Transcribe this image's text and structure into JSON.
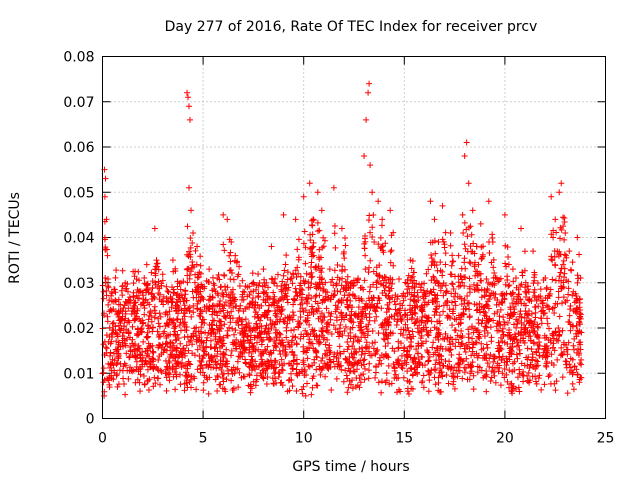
{
  "chart_data": {
    "type": "scatter",
    "title": "Day 277 of 2016, Rate Of TEC Index for receiver prcv",
    "xlabel": "GPS time / hours",
    "ylabel": "ROTI / TECUs",
    "xlim": [
      0,
      25
    ],
    "ylim": [
      0,
      0.08
    ],
    "x_ticks": [
      0,
      5,
      10,
      15,
      20,
      25
    ],
    "x_tick_labels": [
      "0",
      "5",
      "10",
      "15",
      "20",
      "25"
    ],
    "y_ticks": [
      0,
      0.01,
      0.02,
      0.03,
      0.04,
      0.05,
      0.06,
      0.07,
      0.08
    ],
    "y_tick_labels": [
      "0",
      "0.01",
      "0.02",
      "0.03",
      "0.04",
      "0.05",
      "0.06",
      "0.07",
      "0.08"
    ],
    "grid": true,
    "marker": "+",
    "color": "#ff0000",
    "data_range_hours": [
      0,
      23.8
    ],
    "note": "Dense point cloud (thousands of ROTI samples); representative values listed below.",
    "series": [
      {
        "name": "prcv",
        "points": [
          [
            0.05,
            0.028
          ],
          [
            0.08,
            0.005
          ],
          [
            0.1,
            0.055
          ],
          [
            0.12,
            0.049
          ],
          [
            0.15,
            0.053
          ],
          [
            0.2,
            0.044
          ],
          [
            0.25,
            0.036
          ],
          [
            0.3,
            0.029
          ],
          [
            0.4,
            0.024
          ],
          [
            0.5,
            0.013
          ],
          [
            0.7,
            0.012
          ],
          [
            0.9,
            0.016
          ],
          [
            1.1,
            0.025
          ],
          [
            1.3,
            0.019
          ],
          [
            1.5,
            0.014
          ],
          [
            1.8,
            0.028
          ],
          [
            2.0,
            0.021
          ],
          [
            2.2,
            0.034
          ],
          [
            2.4,
            0.012
          ],
          [
            2.6,
            0.042
          ],
          [
            2.8,
            0.018
          ],
          [
            3.0,
            0.026
          ],
          [
            3.2,
            0.015
          ],
          [
            3.5,
            0.035
          ],
          [
            3.7,
            0.022
          ],
          [
            3.9,
            0.03
          ],
          [
            4.1,
            0.024
          ],
          [
            4.2,
            0.072
          ],
          [
            4.25,
            0.071
          ],
          [
            4.3,
            0.069
          ],
          [
            4.35,
            0.066
          ],
          [
            4.3,
            0.051
          ],
          [
            4.4,
            0.046
          ],
          [
            4.5,
            0.041
          ],
          [
            4.7,
            0.038
          ],
          [
            4.9,
            0.027
          ],
          [
            5.1,
            0.019
          ],
          [
            5.3,
            0.033
          ],
          [
            5.5,
            0.025
          ],
          [
            5.7,
            0.031
          ],
          [
            6.0,
            0.045
          ],
          [
            6.1,
            0.006
          ],
          [
            6.2,
            0.044
          ],
          [
            6.4,
            0.039
          ],
          [
            6.6,
            0.036
          ],
          [
            6.8,
            0.022
          ],
          [
            7.0,
            0.017
          ],
          [
            7.2,
            0.029
          ],
          [
            7.4,
            0.013
          ],
          [
            7.6,
            0.025
          ],
          [
            7.8,
            0.019
          ],
          [
            8.0,
            0.033
          ],
          [
            8.2,
            0.011
          ],
          [
            8.4,
            0.038
          ],
          [
            8.6,
            0.016
          ],
          [
            8.8,
            0.024
          ],
          [
            9.0,
            0.045
          ],
          [
            9.2,
            0.006
          ],
          [
            9.4,
            0.031
          ],
          [
            9.6,
            0.044
          ],
          [
            9.8,
            0.021
          ],
          [
            10.0,
            0.049
          ],
          [
            10.1,
            0.005
          ],
          [
            10.3,
            0.052
          ],
          [
            10.5,
            0.036
          ],
          [
            10.7,
            0.05
          ],
          [
            10.9,
            0.046
          ],
          [
            11.1,
            0.027
          ],
          [
            11.3,
            0.033
          ],
          [
            11.5,
            0.051
          ],
          [
            11.7,
            0.019
          ],
          [
            11.9,
            0.042
          ],
          [
            12.1,
            0.013
          ],
          [
            12.3,
            0.025
          ],
          [
            12.5,
            0.018
          ],
          [
            12.7,
            0.031
          ],
          [
            12.9,
            0.022
          ],
          [
            13.0,
            0.058
          ],
          [
            13.1,
            0.066
          ],
          [
            13.2,
            0.072
          ],
          [
            13.25,
            0.074
          ],
          [
            13.3,
            0.056
          ],
          [
            13.4,
            0.05
          ],
          [
            13.5,
            0.039
          ],
          [
            13.7,
            0.048
          ],
          [
            13.9,
            0.044
          ],
          [
            14.1,
            0.03
          ],
          [
            14.3,
            0.046
          ],
          [
            14.5,
            0.022
          ],
          [
            14.7,
            0.017
          ],
          [
            14.9,
            0.025
          ],
          [
            15.1,
            0.012
          ],
          [
            15.3,
            0.035
          ],
          [
            15.5,
            0.021
          ],
          [
            15.7,
            0.016
          ],
          [
            15.9,
            0.024
          ],
          [
            16.1,
            0.032
          ],
          [
            16.3,
            0.048
          ],
          [
            16.5,
            0.044
          ],
          [
            16.7,
            0.039
          ],
          [
            16.9,
            0.047
          ],
          [
            17.1,
            0.028
          ],
          [
            17.3,
            0.041
          ],
          [
            17.5,
            0.022
          ],
          [
            17.7,
            0.036
          ],
          [
            17.9,
            0.045
          ],
          [
            18.0,
            0.058
          ],
          [
            18.1,
            0.061
          ],
          [
            18.2,
            0.052
          ],
          [
            18.4,
            0.046
          ],
          [
            18.6,
            0.038
          ],
          [
            18.8,
            0.043
          ],
          [
            19.0,
            0.027
          ],
          [
            19.2,
            0.048
          ],
          [
            19.4,
            0.039
          ],
          [
            19.6,
            0.031
          ],
          [
            19.8,
            0.024
          ],
          [
            20.0,
            0.045
          ],
          [
            20.2,
            0.019
          ],
          [
            20.4,
            0.033
          ],
          [
            20.6,
            0.016
          ],
          [
            20.8,
            0.042
          ],
          [
            21.0,
            0.029
          ],
          [
            21.2,
            0.021
          ],
          [
            21.4,
            0.037
          ],
          [
            21.6,
            0.018
          ],
          [
            21.8,
            0.026
          ],
          [
            22.0,
            0.014
          ],
          [
            22.3,
            0.049
          ],
          [
            22.5,
            0.044
          ],
          [
            22.7,
            0.05
          ],
          [
            22.8,
            0.052
          ],
          [
            23.0,
            0.041
          ],
          [
            23.2,
            0.037
          ],
          [
            23.4,
            0.028
          ],
          [
            23.6,
            0.04
          ],
          [
            23.7,
            0.008
          ],
          [
            23.8,
            0.019
          ]
        ]
      }
    ]
  }
}
